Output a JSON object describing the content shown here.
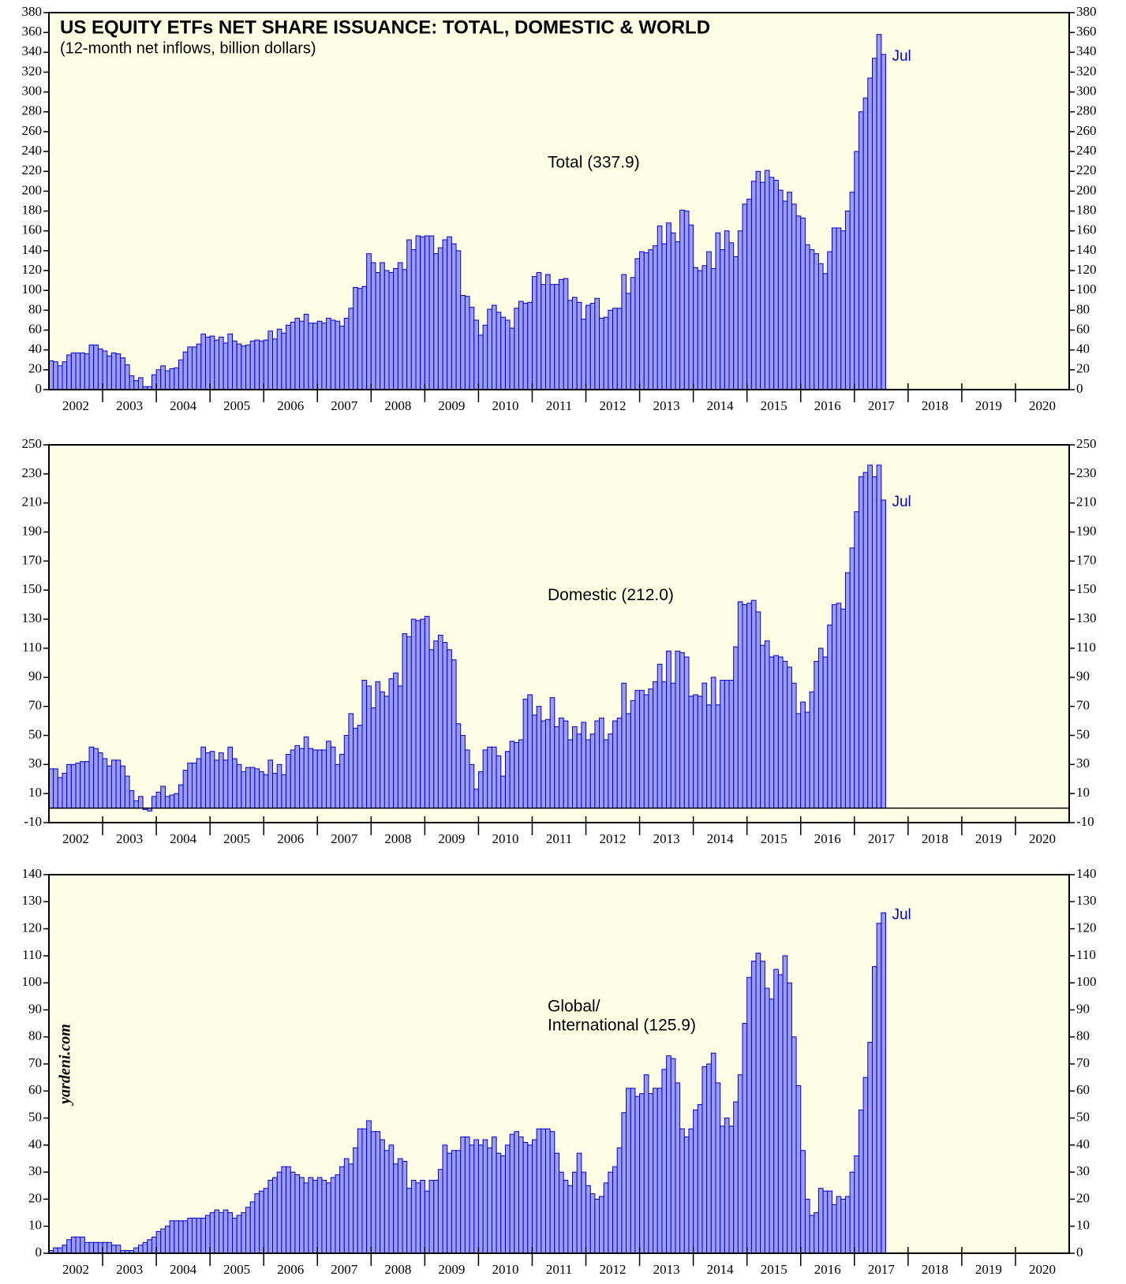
{
  "chart_data": [
    {
      "type": "bar",
      "title": "US EQUITY ETFs NET SHARE ISSUANCE: TOTAL, DOMESTIC & WORLD",
      "subtitle": "(12-month net inflows, billion dollars)",
      "label": "Total (337.9)",
      "annotation": "Jul",
      "color": "#9c9cff",
      "edge": "#0000cc",
      "categories": [
        "2002",
        "2003",
        "2004",
        "2005",
        "2006",
        "2007",
        "2008",
        "2009",
        "2010",
        "2011",
        "2012",
        "2013",
        "2014",
        "2015",
        "2016",
        "2017",
        "2018",
        "2019",
        "2020"
      ],
      "values": [
        [
          29,
          28,
          24,
          28,
          35,
          37,
          37,
          37,
          36,
          45,
          45,
          41
        ],
        [
          39,
          34,
          37,
          36,
          32,
          25,
          14,
          9,
          12,
          3,
          3,
          15
        ],
        [
          20,
          24,
          19,
          21,
          22,
          30,
          38,
          43,
          43,
          46,
          56,
          53
        ],
        [
          54,
          50,
          53,
          47,
          56,
          49,
          46,
          44,
          45,
          49,
          50,
          49
        ],
        [
          50,
          59,
          51,
          61,
          57,
          65,
          68,
          72,
          69,
          76,
          67,
          67
        ],
        [
          69,
          67,
          72,
          70,
          69,
          64,
          72,
          82,
          103,
          102,
          104,
          137
        ],
        [
          128,
          118,
          128,
          120,
          118,
          122,
          128,
          121,
          151,
          141,
          155,
          154
        ],
        [
          155,
          155,
          137,
          143,
          151,
          154,
          147,
          140,
          95,
          94,
          83,
          70
        ],
        [
          55,
          65,
          81,
          85,
          78,
          73,
          70,
          62,
          82,
          89,
          87,
          88
        ],
        [
          114,
          118,
          106,
          116,
          106,
          106,
          111,
          112,
          90,
          93,
          88,
          71
        ],
        [
          85,
          87,
          92,
          72,
          73,
          80,
          82,
          82,
          116,
          97,
          113,
          132
        ],
        [
          139,
          138,
          141,
          145,
          165,
          147,
          168,
          158,
          149,
          181,
          180,
          166
        ],
        [
          123,
          120,
          125,
          139,
          122,
          158,
          141,
          160,
          148,
          134,
          160,
          187
        ],
        [
          192,
          210,
          220,
          209,
          221,
          214,
          211,
          201,
          190,
          199,
          187,
          175
        ],
        [
          173,
          146,
          141,
          137,
          127,
          117,
          139,
          163,
          163,
          160,
          180,
          199
        ],
        [
          240,
          280,
          294,
          314,
          334,
          358,
          337.9
        ],
        [],
        [],
        []
      ],
      "ylim": [
        0,
        380
      ],
      "yticks": [
        0,
        20,
        40,
        60,
        80,
        100,
        120,
        140,
        160,
        180,
        200,
        220,
        240,
        260,
        280,
        300,
        320,
        340,
        360,
        380
      ]
    },
    {
      "type": "bar",
      "label": "Domestic (212.0)",
      "annotation": "Jul",
      "color": "#9c9cff",
      "edge": "#0000cc",
      "categories": [
        "2002",
        "2003",
        "2004",
        "2005",
        "2006",
        "2007",
        "2008",
        "2009",
        "2010",
        "2011",
        "2012",
        "2013",
        "2014",
        "2015",
        "2016",
        "2017",
        "2018",
        "2019",
        "2020"
      ],
      "values": [
        [
          27,
          27,
          21,
          24,
          30,
          30,
          31,
          32,
          32,
          42,
          41,
          38
        ],
        [
          34,
          29,
          33,
          33,
          29,
          22,
          12,
          5,
          8,
          -1,
          -2,
          8
        ],
        [
          11,
          15,
          8,
          9,
          10,
          16,
          26,
          31,
          31,
          34,
          42,
          38
        ],
        [
          39,
          33,
          38,
          33,
          42,
          34,
          30,
          25,
          28,
          28,
          27,
          25
        ],
        [
          23,
          33,
          24,
          30,
          23,
          37,
          40,
          43,
          41,
          49,
          41,
          40
        ],
        [
          40,
          40,
          46,
          42,
          30,
          37,
          50,
          65,
          55,
          57,
          88,
          84
        ],
        [
          69,
          87,
          80,
          77,
          89,
          93,
          84,
          120,
          118,
          130,
          129,
          130
        ],
        [
          132,
          109,
          115,
          119,
          114,
          109,
          102,
          58,
          50,
          40,
          30,
          13
        ],
        [
          25,
          40,
          42,
          42,
          36,
          22,
          39,
          46,
          45,
          47,
          75,
          78
        ],
        [
          64,
          70,
          60,
          61,
          76,
          56,
          62,
          60,
          47,
          56,
          51,
          59
        ],
        [
          47,
          51,
          60,
          62,
          47,
          51,
          60,
          62,
          86,
          65,
          74,
          81
        ],
        [
          81,
          78,
          82,
          87,
          99,
          87,
          108,
          86,
          108,
          107,
          104,
          77
        ],
        [
          78,
          77,
          86,
          71,
          90,
          71,
          88,
          88,
          88,
          111,
          142,
          140
        ],
        [
          141,
          143,
          135,
          112,
          115,
          104,
          105,
          104,
          101,
          97,
          86,
          65
        ],
        [
          73,
          66,
          80,
          101,
          110,
          104,
          126,
          140,
          141,
          137,
          162,
          179
        ],
        [
          204,
          228,
          231,
          236,
          228,
          236,
          212.0
        ],
        [],
        [],
        []
      ],
      "ylim": [
        -10,
        250
      ],
      "yticks": [
        -10,
        10,
        30,
        50,
        70,
        90,
        110,
        130,
        150,
        170,
        190,
        210,
        230,
        250
      ]
    },
    {
      "type": "bar",
      "label": [
        "Global/",
        "International (125.9)"
      ],
      "annotation": "Jul",
      "source": "yardeni.com",
      "color": "#9c9cff",
      "edge": "#0000cc",
      "categories": [
        "2002",
        "2003",
        "2004",
        "2005",
        "2006",
        "2007",
        "2008",
        "2009",
        "2010",
        "2011",
        "2012",
        "2013",
        "2014",
        "2015",
        "2016",
        "2017",
        "2018",
        "2019",
        "2020"
      ],
      "values": [
        [
          1,
          2,
          2,
          3,
          5,
          6,
          6,
          6,
          4,
          4,
          4,
          4
        ],
        [
          4,
          4,
          3,
          3,
          1,
          1,
          1,
          2,
          3,
          4,
          5,
          6
        ],
        [
          8,
          9,
          10,
          12,
          12,
          12,
          12,
          13,
          13,
          13,
          13,
          14
        ],
        [
          15,
          16,
          15,
          16,
          15,
          13,
          14,
          15,
          17,
          19,
          22,
          23
        ],
        [
          24,
          27,
          28,
          30,
          32,
          32,
          30,
          29,
          28,
          26,
          28,
          27
        ],
        [
          28,
          27,
          26,
          28,
          29,
          32,
          35,
          33,
          39,
          46,
          46,
          49
        ],
        [
          45,
          45,
          42,
          38,
          40,
          33,
          35,
          34,
          24,
          27,
          26,
          27
        ],
        [
          23,
          27,
          27,
          31,
          40,
          37,
          38,
          38,
          43,
          43,
          40,
          42
        ],
        [
          40,
          42,
          39,
          43,
          37,
          36,
          40,
          44,
          45,
          43,
          41,
          40
        ],
        [
          42,
          46,
          46,
          46,
          45,
          37,
          30,
          27,
          25,
          30,
          37,
          30
        ],
        [
          25,
          22,
          20,
          21,
          26,
          30,
          32,
          39,
          52,
          61,
          61,
          58
        ],
        [
          59,
          66,
          59,
          61,
          61,
          68,
          73,
          72,
          63,
          46,
          43,
          46
        ],
        [
          53,
          55,
          69,
          70,
          74,
          63,
          47,
          50,
          47,
          56,
          66,
          85
        ],
        [
          102,
          108,
          111,
          108,
          98,
          94,
          105,
          103,
          110,
          100,
          80,
          62
        ],
        [
          38,
          20,
          14,
          15,
          24,
          23,
          23,
          18,
          21,
          20,
          21,
          30
        ],
        [
          36,
          53,
          65,
          78,
          106,
          122,
          125.9
        ],
        [],
        [],
        []
      ],
      "ylim": [
        0,
        140
      ],
      "yticks": [
        0,
        10,
        20,
        30,
        40,
        50,
        60,
        70,
        80,
        90,
        100,
        110,
        120,
        130,
        140
      ]
    }
  ]
}
